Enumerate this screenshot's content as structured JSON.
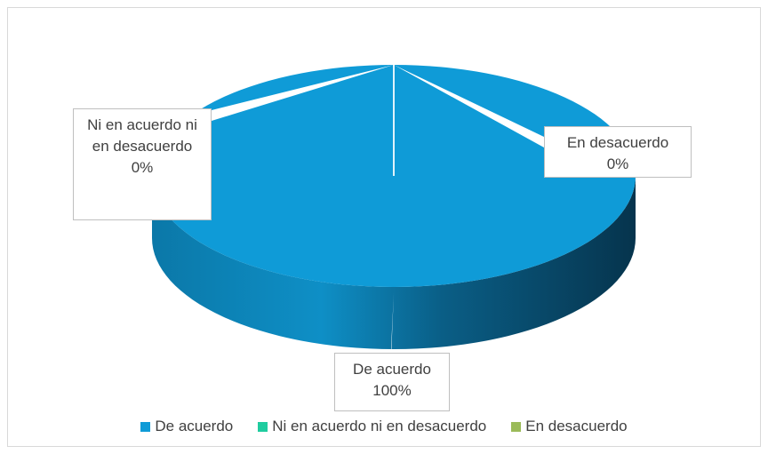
{
  "chart_data": {
    "type": "pie3d",
    "categories": [
      "De acuerdo",
      "Ni en acuerdo ni en desacuerdo",
      "En desacuerdo"
    ],
    "values": [
      100,
      0,
      0
    ],
    "value_labels": [
      "100%",
      "0%",
      "0%"
    ],
    "colors": [
      "#0f9bd7",
      "#1fcc9f",
      "#9bbb59"
    ],
    "legend": "bottom"
  }
}
